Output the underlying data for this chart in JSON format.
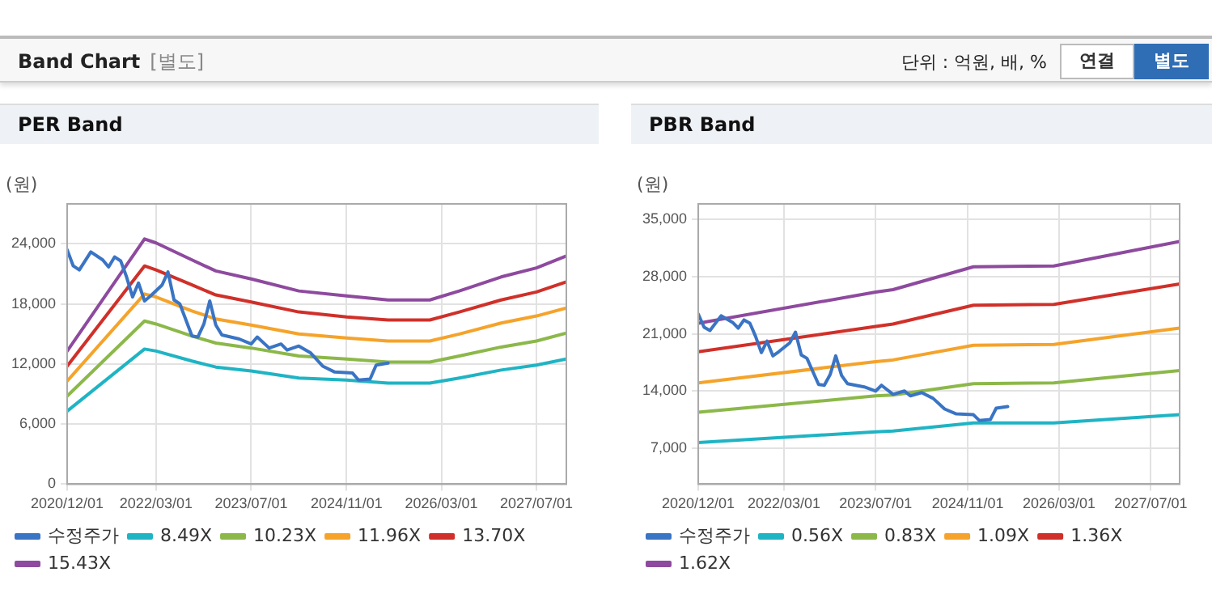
{
  "chart_data": [
    {
      "type": "other",
      "title": "Band Chart",
      "subtitle": "[별도]",
      "annotations": [
        "단위 : 억원, 배, %",
        "연결",
        "별도"
      ]
    },
    {
      "type": "line",
      "title": "PER Band",
      "ylabel": "(원)",
      "xlim": [
        "2020-12-01",
        "2027-12-01"
      ],
      "xticks": [
        {
          "value": "2020-12-01",
          "label": "2020/12/01"
        },
        {
          "value": "2022-03-01",
          "label": "2022/03/01"
        },
        {
          "value": "2023-07-01",
          "label": "2023/07/01"
        },
        {
          "value": "2024-11-01",
          "label": "2024/11/01"
        },
        {
          "value": "2026-03-01",
          "label": "2026/03/01"
        },
        {
          "value": "2027-07-01",
          "label": "2027/07/01"
        }
      ],
      "ylim": [
        0,
        28000
      ],
      "yticks": [
        {
          "value": 0,
          "label": "0"
        },
        {
          "value": 6000,
          "label": "6,000"
        },
        {
          "value": 12000,
          "label": "12,000"
        },
        {
          "value": 18000,
          "label": "18,000"
        },
        {
          "value": 24000,
          "label": "24,000"
        }
      ],
      "grid": true,
      "legend": "bottom",
      "marker": "none",
      "series": [
        {
          "name": "수정주가",
          "color": "#3a74c4",
          "x": [
            "2020-12",
            "2021-01",
            "2021-02",
            "2021-04",
            "2021-06",
            "2021-07",
            "2021-08",
            "2021-09",
            "2021-10",
            "2021-11",
            "2021-12",
            "2022-01",
            "2022-02",
            "2022-04",
            "2022-05",
            "2022-06",
            "2022-07",
            "2022-09",
            "2022-10",
            "2022-11",
            "2022-12",
            "2023-01",
            "2023-02",
            "2023-05",
            "2023-07",
            "2023-08",
            "2023-10",
            "2023-12",
            "2024-01",
            "2024-03",
            "2024-05",
            "2024-07",
            "2024-09",
            "2024-12",
            "2025-01",
            "2025-03",
            "2025-04",
            "2025-06"
          ],
          "values": [
            23400,
            21800,
            21400,
            23200,
            22400,
            21700,
            22700,
            22300,
            20700,
            18700,
            20100,
            18300,
            18800,
            19900,
            21200,
            18400,
            18000,
            14800,
            14700,
            16000,
            18300,
            15900,
            14900,
            14500,
            14000,
            14700,
            13600,
            14000,
            13400,
            13800,
            13100,
            11800,
            11200,
            11100,
            10400,
            10500,
            11900,
            12100
          ]
        },
        {
          "name": "8.49X",
          "color": "#1fb4c4",
          "x": [
            "2020-12",
            "2022-01",
            "2022-03",
            "2022-09",
            "2023-01",
            "2023-07",
            "2024-03",
            "2024-11",
            "2025-06",
            "2026-01",
            "2026-06",
            "2027-01",
            "2027-07",
            "2027-12"
          ],
          "values": [
            7300,
            13500,
            13300,
            12300,
            11700,
            11300,
            10600,
            10400,
            10100,
            10100,
            10600,
            11400,
            11900,
            12500
          ]
        },
        {
          "name": "10.23X",
          "color": "#8cb84a",
          "x": [
            "2020-12",
            "2022-01",
            "2022-03",
            "2022-09",
            "2023-01",
            "2023-07",
            "2024-03",
            "2024-11",
            "2025-06",
            "2026-01",
            "2026-06",
            "2027-01",
            "2027-07",
            "2027-12"
          ],
          "values": [
            8800,
            16300,
            16000,
            14800,
            14100,
            13600,
            12800,
            12500,
            12200,
            12200,
            12800,
            13700,
            14300,
            15100
          ]
        },
        {
          "name": "11.96X",
          "color": "#f5a32a",
          "x": [
            "2020-12",
            "2022-01",
            "2022-03",
            "2022-09",
            "2023-01",
            "2023-07",
            "2024-03",
            "2024-11",
            "2025-06",
            "2026-01",
            "2026-06",
            "2027-01",
            "2027-07",
            "2027-12"
          ],
          "values": [
            10300,
            19000,
            18700,
            17300,
            16500,
            15900,
            15000,
            14600,
            14300,
            14300,
            15000,
            16100,
            16800,
            17600
          ]
        },
        {
          "name": "13.70X",
          "color": "#d0302a",
          "x": [
            "2020-12",
            "2022-01",
            "2022-03",
            "2022-09",
            "2023-01",
            "2023-07",
            "2024-03",
            "2024-11",
            "2025-06",
            "2026-01",
            "2026-06",
            "2027-01",
            "2027-07",
            "2027-12"
          ],
          "values": [
            11800,
            21800,
            21400,
            19900,
            18900,
            18200,
            17200,
            16700,
            16400,
            16400,
            17200,
            18400,
            19200,
            20200
          ]
        },
        {
          "name": "15.43X",
          "color": "#8e4a9e",
          "x": [
            "2020-12",
            "2022-01",
            "2022-03",
            "2022-09",
            "2023-01",
            "2023-07",
            "2024-03",
            "2024-11",
            "2025-06",
            "2026-01",
            "2026-06",
            "2027-01",
            "2027-07",
            "2027-12"
          ],
          "values": [
            13300,
            24500,
            24100,
            22400,
            21300,
            20500,
            19300,
            18800,
            18400,
            18400,
            19300,
            20700,
            21600,
            22800
          ]
        }
      ]
    },
    {
      "type": "line",
      "title": "PBR Band",
      "ylabel": "(원)",
      "xlim": [
        "2020-12-01",
        "2027-12-01"
      ],
      "xticks": [
        {
          "value": "2020-12-01",
          "label": "2020/12/01"
        },
        {
          "value": "2022-03-01",
          "label": "2022/03/01"
        },
        {
          "value": "2023-07-01",
          "label": "2023/07/01"
        },
        {
          "value": "2024-11-01",
          "label": "2024/11/01"
        },
        {
          "value": "2026-03-01",
          "label": "2026/03/01"
        },
        {
          "value": "2027-07-01",
          "label": "2027/07/01"
        }
      ],
      "ylim": [
        2600,
        36900
      ],
      "yticks": [
        {
          "value": 7000,
          "label": "7,000"
        },
        {
          "value": 14000,
          "label": "14,000"
        },
        {
          "value": 21000,
          "label": "21,000"
        },
        {
          "value": 28000,
          "label": "28,000"
        },
        {
          "value": 35000,
          "label": "35,000"
        }
      ],
      "grid": true,
      "legend": "bottom",
      "marker": "none",
      "series": [
        {
          "name": "수정주가",
          "color": "#3a74c4",
          "x": [
            "2020-12",
            "2021-01",
            "2021-02",
            "2021-04",
            "2021-06",
            "2021-07",
            "2021-08",
            "2021-09",
            "2021-10",
            "2021-11",
            "2021-12",
            "2022-01",
            "2022-02",
            "2022-04",
            "2022-05",
            "2022-06",
            "2022-07",
            "2022-09",
            "2022-10",
            "2022-11",
            "2022-12",
            "2023-01",
            "2023-02",
            "2023-05",
            "2023-07",
            "2023-08",
            "2023-10",
            "2023-12",
            "2024-01",
            "2024-03",
            "2024-05",
            "2024-07",
            "2024-09",
            "2024-12",
            "2025-01",
            "2025-03",
            "2025-04",
            "2025-06"
          ],
          "values": [
            23400,
            21800,
            21400,
            23200,
            22400,
            21700,
            22700,
            22300,
            20700,
            18700,
            20100,
            18300,
            18800,
            19900,
            21200,
            18400,
            18000,
            14800,
            14700,
            16000,
            18300,
            15900,
            14900,
            14500,
            14000,
            14700,
            13600,
            14000,
            13400,
            13800,
            13100,
            11800,
            11200,
            11100,
            10400,
            10500,
            11900,
            12100
          ]
        },
        {
          "name": "0.56X",
          "color": "#1fb4c4",
          "x": [
            "2020-12",
            "2023-07",
            "2023-10",
            "2024-12",
            "2026-02",
            "2027-12"
          ],
          "values": [
            7700,
            9000,
            9100,
            10100,
            10100,
            11100
          ]
        },
        {
          "name": "0.83X",
          "color": "#8cb84a",
          "x": [
            "2020-12",
            "2023-07",
            "2023-10",
            "2024-12",
            "2026-02",
            "2027-12"
          ],
          "values": [
            11400,
            13400,
            13500,
            14900,
            15000,
            16500
          ]
        },
        {
          "name": "1.09X",
          "color": "#f5a32a",
          "x": [
            "2020-12",
            "2023-07",
            "2023-10",
            "2024-12",
            "2026-02",
            "2027-12"
          ],
          "values": [
            15000,
            17600,
            17800,
            19600,
            19700,
            21700
          ]
        },
        {
          "name": "1.36X",
          "color": "#d0302a",
          "x": [
            "2020-12",
            "2023-07",
            "2023-10",
            "2024-12",
            "2026-02",
            "2027-12"
          ],
          "values": [
            18800,
            21900,
            22200,
            24500,
            24600,
            27100
          ]
        },
        {
          "name": "1.62X",
          "color": "#8e4a9e",
          "x": [
            "2020-12",
            "2023-07",
            "2023-10",
            "2024-12",
            "2026-02",
            "2027-12"
          ],
          "values": [
            22300,
            26100,
            26400,
            29200,
            29300,
            32300
          ]
        }
      ]
    }
  ]
}
